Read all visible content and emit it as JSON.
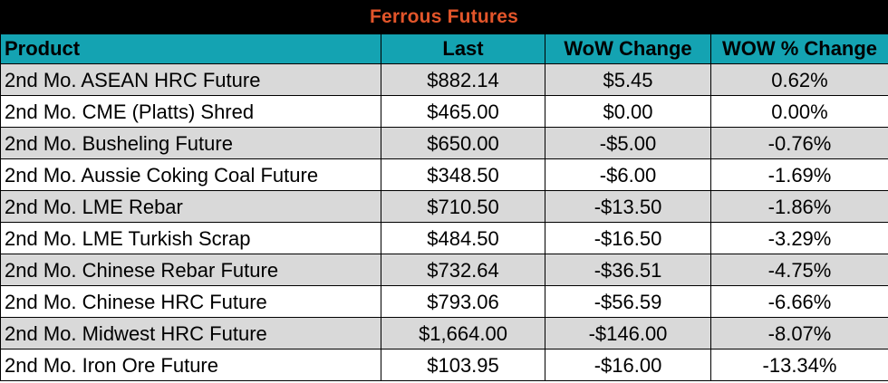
{
  "title": "Ferrous Futures",
  "columns": [
    "Product",
    "Last",
    "WoW Change",
    "WOW % Change"
  ],
  "rows": [
    {
      "product": "2nd Mo. ASEAN HRC Future",
      "last": "$882.14",
      "wow": "$5.45",
      "pct": "0.62%"
    },
    {
      "product": "2nd Mo. CME (Platts) Shred",
      "last": "$465.00",
      "wow": "$0.00",
      "pct": "0.00%"
    },
    {
      "product": "2nd Mo. Busheling Future",
      "last": "$650.00",
      "wow": "-$5.00",
      "pct": "-0.76%"
    },
    {
      "product": "2nd Mo. Aussie Coking Coal Future",
      "last": "$348.50",
      "wow": "-$6.00",
      "pct": "-1.69%"
    },
    {
      "product": "2nd Mo. LME Rebar",
      "last": "$710.50",
      "wow": "-$13.50",
      "pct": "-1.86%"
    },
    {
      "product": "2nd Mo. LME Turkish Scrap",
      "last": "$484.50",
      "wow": "-$16.50",
      "pct": "-3.29%"
    },
    {
      "product": "2nd Mo. Chinese Rebar Future",
      "last": "$732.64",
      "wow": "-$36.51",
      "pct": "-4.75%"
    },
    {
      "product": "2nd Mo. Chinese HRC Future",
      "last": "$793.06",
      "wow": "-$56.59",
      "pct": "-6.66%"
    },
    {
      "product": "2nd Mo. Midwest HRC Future",
      "last": "$1,664.00",
      "wow": "-$146.00",
      "pct": "-8.07%"
    },
    {
      "product": "2nd Mo. Iron Ore Future",
      "last": "$103.95",
      "wow": "-$16.00",
      "pct": "-13.34%"
    }
  ],
  "colors": {
    "title_bg": "#000000",
    "title_text": "#e2552a",
    "header_bg": "#14a3b2",
    "row_shade": "#d9d9d9",
    "row_plain": "#ffffff"
  }
}
